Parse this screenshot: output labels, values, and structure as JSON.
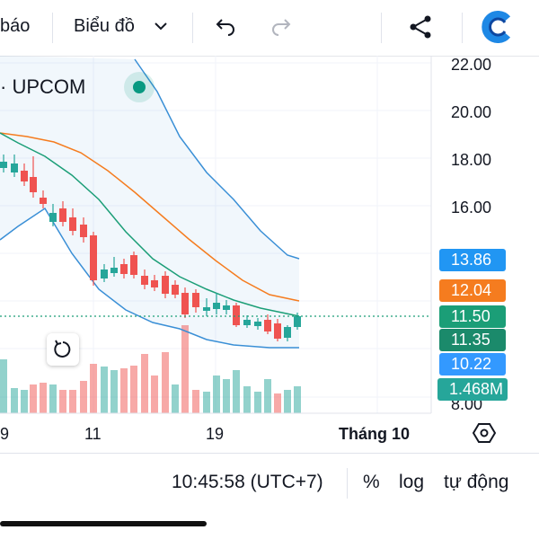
{
  "toolbar": {
    "partial_label": "báo",
    "chart_type_label": "Biểu đồ",
    "icons": [
      "undo-icon",
      "redo-icon",
      "share-icon",
      "app-logo-icon"
    ]
  },
  "legend": {
    "symbol_partial": "· UPCOM"
  },
  "price_axis": {
    "ticks": [
      "22.00",
      "20.00",
      "18.00",
      "16.00",
      "8.00"
    ],
    "badges": [
      {
        "value": "13.86",
        "color": "#2196f3"
      },
      {
        "value": "12.04",
        "color": "#f57c1f"
      },
      {
        "value": "11.50",
        "color": "#1b9e77"
      },
      {
        "value": "11.35",
        "color": "#1b8a6b"
      },
      {
        "value": "10.22",
        "color": "#3399ff"
      },
      {
        "value": "1.468M",
        "color": "#26a69a"
      }
    ]
  },
  "time_axis": {
    "labels": [
      "9",
      "11",
      "19",
      "Tháng 10"
    ]
  },
  "bottom_bar": {
    "time": "10:45:58 (UTC+7)",
    "percent": "%",
    "log": "log",
    "auto": "tự động"
  },
  "colors": {
    "up": "#26a69a",
    "down": "#ef5350",
    "bb_basis": "#f57c1f",
    "bb_band": "#3a8fd6",
    "ma": "#1b9e77"
  }
}
